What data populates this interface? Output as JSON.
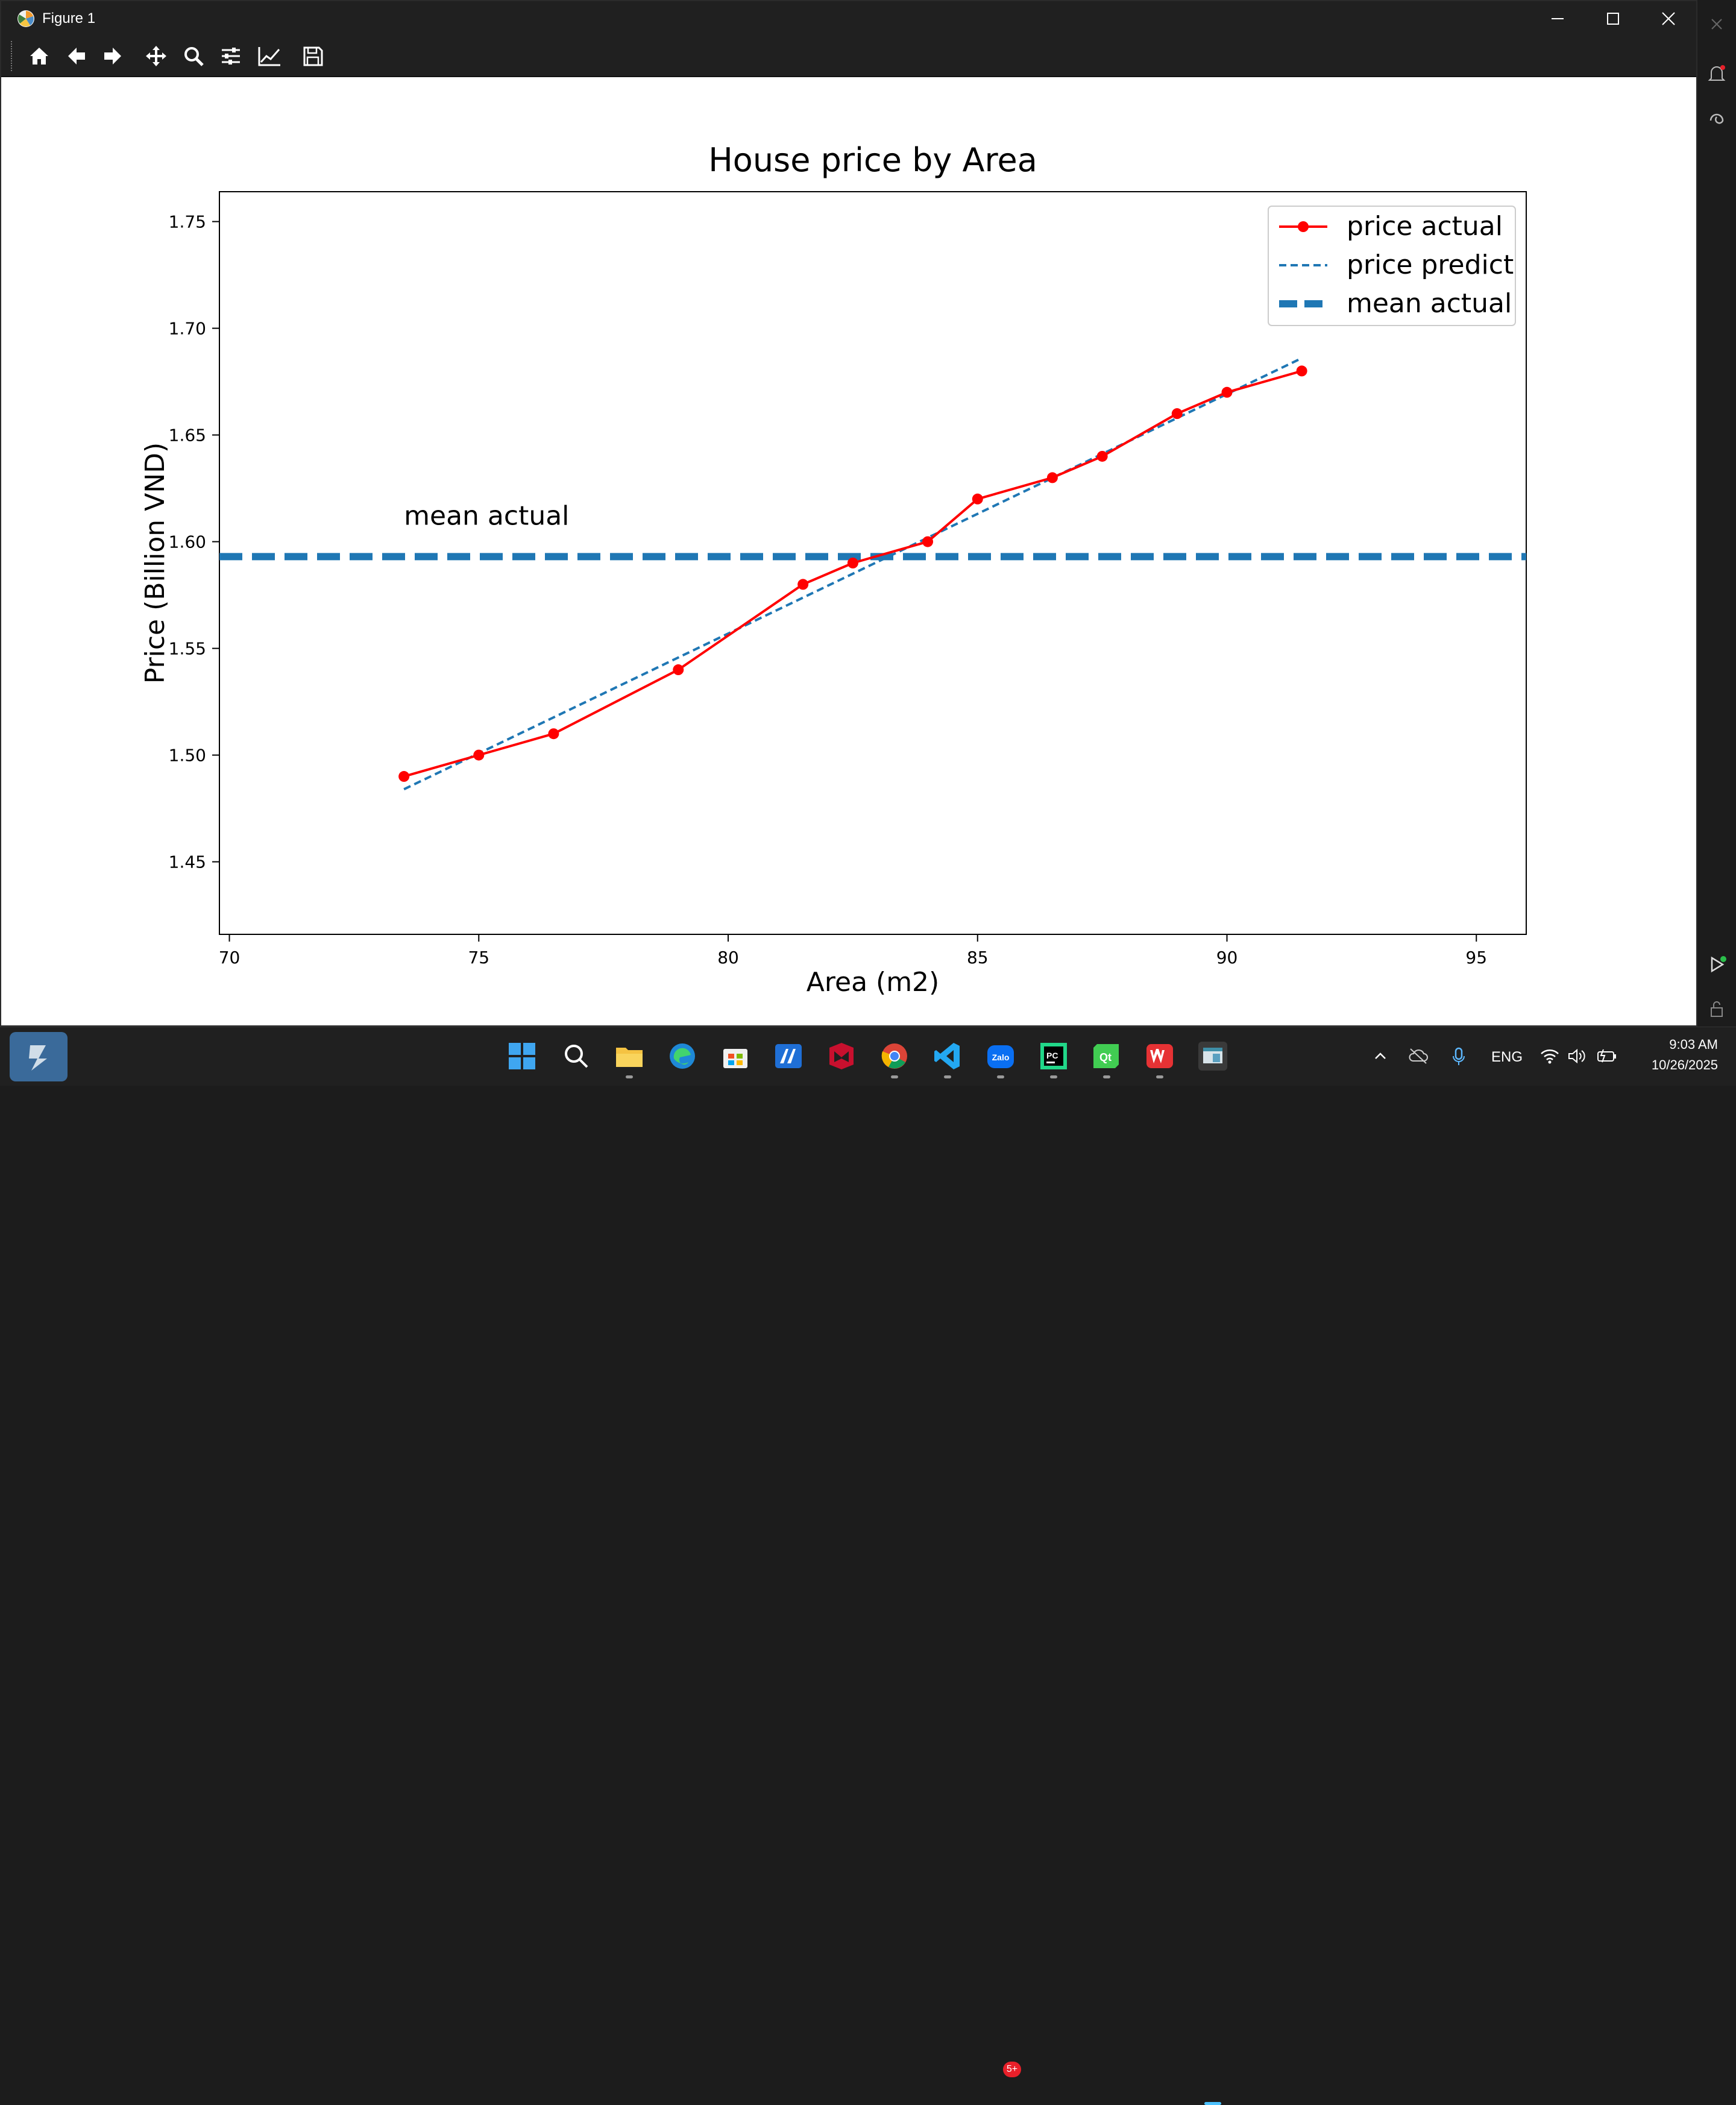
{
  "window": {
    "title": "Figure 1"
  },
  "toolbar": {
    "buttons": [
      {
        "name": "home",
        "icon": "home-icon"
      },
      {
        "name": "back",
        "icon": "arrow-left-icon"
      },
      {
        "name": "forward",
        "icon": "arrow-right-icon"
      },
      {
        "name": "pan",
        "icon": "move-icon"
      },
      {
        "name": "zoom",
        "icon": "magnifier-icon"
      },
      {
        "name": "configure-subplots",
        "icon": "sliders-icon"
      },
      {
        "name": "edit-axes",
        "icon": "trend-line-icon"
      },
      {
        "name": "save",
        "icon": "floppy-disk-icon"
      }
    ]
  },
  "chart_data": {
    "type": "line",
    "title": "House price by Area",
    "xlabel": "Area (m2)",
    "ylabel": "Price (Billion VND)",
    "xlim": [
      69.8,
      96.0
    ],
    "ylim": [
      1.416,
      1.764
    ],
    "xticks": [
      70,
      75,
      80,
      85,
      90,
      95
    ],
    "yticks": [
      1.45,
      1.5,
      1.55,
      1.6,
      1.65,
      1.7,
      1.75
    ],
    "xtick_labels": [
      "70",
      "75",
      "80",
      "85",
      "90",
      "95"
    ],
    "ytick_labels": [
      "1.45",
      "1.50",
      "1.55",
      "1.60",
      "1.65",
      "1.70",
      "1.75"
    ],
    "series": [
      {
        "name": "price actual",
        "color": "#ff0000",
        "style": "solid-with-markers",
        "x": [
          73.5,
          75.0,
          76.5,
          79.0,
          81.5,
          82.5,
          84.0,
          85.0,
          86.5,
          87.5,
          89.0,
          90.0,
          91.5
        ],
        "y": [
          1.49,
          1.5,
          1.51,
          1.54,
          1.58,
          1.59,
          1.6,
          1.62,
          1.63,
          1.64,
          1.66,
          1.67,
          1.68
        ]
      },
      {
        "name": "price predict",
        "color": "#1f77b4",
        "style": "dashed",
        "x": [
          73.5,
          91.5
        ],
        "y": [
          1.484,
          1.686
        ]
      },
      {
        "name": "mean actual",
        "color": "#1f77b4",
        "style": "thick-dashed-horizontal",
        "y": 1.593
      }
    ],
    "annotation": {
      "text": "mean actual",
      "x": 73.5,
      "y": 1.608
    },
    "legend": {
      "position": "top-right",
      "entries": [
        "price actual",
        "price predict",
        "mean actual"
      ]
    }
  },
  "taskbar": {
    "apps": [
      {
        "name": "windows-start",
        "icon": "windows-logo-icon"
      },
      {
        "name": "search",
        "icon": "search-icon"
      },
      {
        "name": "file-explorer",
        "icon": "folder-icon"
      },
      {
        "name": "edge",
        "icon": "edge-icon"
      },
      {
        "name": "store",
        "icon": "store-icon"
      },
      {
        "name": "app-blue",
        "icon": "app-a-icon"
      },
      {
        "name": "mcafee",
        "icon": "mcafee-icon"
      },
      {
        "name": "chrome",
        "icon": "chrome-icon"
      },
      {
        "name": "vscode",
        "icon": "vscode-icon"
      },
      {
        "name": "zalo",
        "icon": "zalo-icon",
        "badge": "5+"
      },
      {
        "name": "pycharm",
        "icon": "pycharm-icon"
      },
      {
        "name": "qt",
        "icon": "qt-icon"
      },
      {
        "name": "wps",
        "icon": "wps-icon"
      },
      {
        "name": "figure-window",
        "icon": "figure-window-icon"
      }
    ],
    "tray": {
      "language": "ENG",
      "time": "9:03 AM",
      "date": "10/26/2025"
    }
  }
}
